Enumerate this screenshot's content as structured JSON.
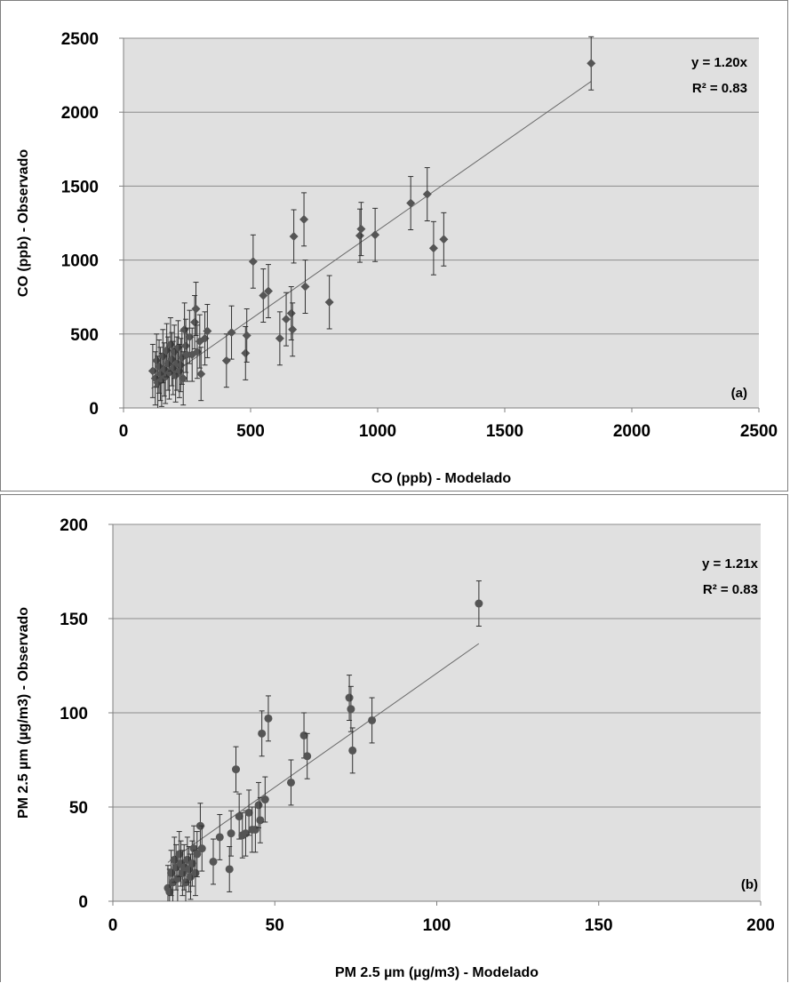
{
  "chart_data": [
    {
      "type": "scatter",
      "panel_label": "(a)",
      "xlabel": "CO (ppb) - Modelado",
      "ylabel": "CO (ppb) - Observado",
      "xlim": [
        0,
        2500
      ],
      "ylim": [
        0,
        2500
      ],
      "xticks": [
        "0",
        "500",
        "1000",
        "1500",
        "2000",
        "2500"
      ],
      "yticks": [
        "0",
        "500",
        "1000",
        "1500",
        "2000",
        "2500"
      ],
      "grid": "horizontal",
      "background": "#e0e0e0",
      "marker_color": "#555555",
      "marker": "diamond",
      "trendline": {
        "equation": "y = 1.20x",
        "r2": "R² = 0.83",
        "slope": 1.2,
        "x_range": [
          110,
          1840
        ]
      },
      "points": [
        {
          "x": 115,
          "y": 250,
          "err": 180
        },
        {
          "x": 125,
          "y": 200,
          "err": 180
        },
        {
          "x": 130,
          "y": 320,
          "err": 180
        },
        {
          "x": 135,
          "y": 170,
          "err": 180
        },
        {
          "x": 140,
          "y": 280,
          "err": 180
        },
        {
          "x": 145,
          "y": 230,
          "err": 180
        },
        {
          "x": 150,
          "y": 190,
          "err": 180
        },
        {
          "x": 155,
          "y": 350,
          "err": 180
        },
        {
          "x": 160,
          "y": 260,
          "err": 180
        },
        {
          "x": 165,
          "y": 210,
          "err": 180
        },
        {
          "x": 170,
          "y": 390,
          "err": 180
        },
        {
          "x": 175,
          "y": 300,
          "err": 180
        },
        {
          "x": 180,
          "y": 240,
          "err": 180
        },
        {
          "x": 185,
          "y": 430,
          "err": 180
        },
        {
          "x": 190,
          "y": 330,
          "err": 180
        },
        {
          "x": 195,
          "y": 270,
          "err": 180
        },
        {
          "x": 200,
          "y": 380,
          "err": 180
        },
        {
          "x": 205,
          "y": 220,
          "err": 180
        },
        {
          "x": 210,
          "y": 300,
          "err": 180
        },
        {
          "x": 215,
          "y": 410,
          "err": 180
        },
        {
          "x": 220,
          "y": 250,
          "err": 180
        },
        {
          "x": 225,
          "y": 290,
          "err": 180
        },
        {
          "x": 230,
          "y": 340,
          "err": 180
        },
        {
          "x": 235,
          "y": 200,
          "err": 180
        },
        {
          "x": 240,
          "y": 530,
          "err": 180
        },
        {
          "x": 245,
          "y": 420,
          "err": 180
        },
        {
          "x": 250,
          "y": 360,
          "err": 180
        },
        {
          "x": 260,
          "y": 480,
          "err": 180
        },
        {
          "x": 270,
          "y": 360,
          "err": 180
        },
        {
          "x": 280,
          "y": 580,
          "err": 180
        },
        {
          "x": 285,
          "y": 670,
          "err": 180
        },
        {
          "x": 290,
          "y": 380,
          "err": 180
        },
        {
          "x": 300,
          "y": 450,
          "err": 180
        },
        {
          "x": 305,
          "y": 230,
          "err": 180
        },
        {
          "x": 320,
          "y": 470,
          "err": 180
        },
        {
          "x": 330,
          "y": 520,
          "err": 180
        },
        {
          "x": 405,
          "y": 320,
          "err": 180
        },
        {
          "x": 425,
          "y": 510,
          "err": 180
        },
        {
          "x": 480,
          "y": 370,
          "err": 180
        },
        {
          "x": 485,
          "y": 490,
          "err": 180
        },
        {
          "x": 510,
          "y": 990,
          "err": 180
        },
        {
          "x": 550,
          "y": 760,
          "err": 180
        },
        {
          "x": 570,
          "y": 790,
          "err": 180
        },
        {
          "x": 615,
          "y": 470,
          "err": 180
        },
        {
          "x": 640,
          "y": 600,
          "err": 180
        },
        {
          "x": 660,
          "y": 640,
          "err": 180
        },
        {
          "x": 665,
          "y": 530,
          "err": 180
        },
        {
          "x": 670,
          "y": 1160,
          "err": 180
        },
        {
          "x": 710,
          "y": 1275,
          "err": 180
        },
        {
          "x": 715,
          "y": 820,
          "err": 180
        },
        {
          "x": 810,
          "y": 715,
          "err": 180
        },
        {
          "x": 930,
          "y": 1165,
          "err": 180
        },
        {
          "x": 935,
          "y": 1210,
          "err": 180
        },
        {
          "x": 990,
          "y": 1170,
          "err": 180
        },
        {
          "x": 1130,
          "y": 1385,
          "err": 180
        },
        {
          "x": 1195,
          "y": 1445,
          "err": 180
        },
        {
          "x": 1220,
          "y": 1080,
          "err": 180
        },
        {
          "x": 1260,
          "y": 1140,
          "err": 180
        },
        {
          "x": 1840,
          "y": 2330,
          "err": 180
        }
      ]
    },
    {
      "type": "scatter",
      "panel_label": "(b)",
      "xlabel": "PM 2.5 µm (µg/m3) - Modelado",
      "ylabel": "PM 2.5 µm (µg/m3) - Observado",
      "xlim": [
        0,
        200
      ],
      "ylim": [
        0,
        200
      ],
      "xticks": [
        "0",
        "50",
        "100",
        "150",
        "200"
      ],
      "yticks": [
        "0",
        "50",
        "100",
        "150",
        "200"
      ],
      "grid": "horizontal",
      "background": "#e0e0e0",
      "marker_color": "#555555",
      "marker": "circle",
      "trendline": {
        "equation": "y = 1.21x",
        "r2": "R² = 0.83",
        "slope": 1.21,
        "x_range": [
          17,
          113
        ]
      },
      "points": [
        {
          "x": 17,
          "y": 7,
          "err": 12
        },
        {
          "x": 17.5,
          "y": 5,
          "err": 12
        },
        {
          "x": 18,
          "y": 15,
          "err": 12
        },
        {
          "x": 18.5,
          "y": 10,
          "err": 12
        },
        {
          "x": 19,
          "y": 22,
          "err": 12
        },
        {
          "x": 19.5,
          "y": 18,
          "err": 12
        },
        {
          "x": 20,
          "y": 12,
          "err": 12
        },
        {
          "x": 20.5,
          "y": 25,
          "err": 12
        },
        {
          "x": 21,
          "y": 20,
          "err": 12
        },
        {
          "x": 21.5,
          "y": 15,
          "err": 12
        },
        {
          "x": 22,
          "y": 18,
          "err": 12
        },
        {
          "x": 22.5,
          "y": 10,
          "err": 12
        },
        {
          "x": 23,
          "y": 22,
          "err": 12
        },
        {
          "x": 23.5,
          "y": 17,
          "err": 12
        },
        {
          "x": 24,
          "y": 13,
          "err": 12
        },
        {
          "x": 24.5,
          "y": 20,
          "err": 12
        },
        {
          "x": 25,
          "y": 28,
          "err": 12
        },
        {
          "x": 25.5,
          "y": 15,
          "err": 12
        },
        {
          "x": 26,
          "y": 25,
          "err": 12
        },
        {
          "x": 27,
          "y": 40,
          "err": 12
        },
        {
          "x": 27.5,
          "y": 28,
          "err": 12
        },
        {
          "x": 31,
          "y": 21,
          "err": 12
        },
        {
          "x": 33,
          "y": 34,
          "err": 12
        },
        {
          "x": 36,
          "y": 17,
          "err": 12
        },
        {
          "x": 36.5,
          "y": 36,
          "err": 12
        },
        {
          "x": 38,
          "y": 70,
          "err": 12
        },
        {
          "x": 39,
          "y": 45,
          "err": 12
        },
        {
          "x": 40,
          "y": 35,
          "err": 12
        },
        {
          "x": 41,
          "y": 36,
          "err": 12
        },
        {
          "x": 42,
          "y": 47,
          "err": 12
        },
        {
          "x": 43,
          "y": 38,
          "err": 12
        },
        {
          "x": 44,
          "y": 38,
          "err": 12
        },
        {
          "x": 45,
          "y": 51,
          "err": 12
        },
        {
          "x": 45.5,
          "y": 43,
          "err": 12
        },
        {
          "x": 46,
          "y": 89,
          "err": 12
        },
        {
          "x": 47,
          "y": 54,
          "err": 12
        },
        {
          "x": 48,
          "y": 97,
          "err": 12
        },
        {
          "x": 55,
          "y": 63,
          "err": 12
        },
        {
          "x": 59,
          "y": 88,
          "err": 12
        },
        {
          "x": 60,
          "y": 77,
          "err": 12
        },
        {
          "x": 73,
          "y": 108,
          "err": 12
        },
        {
          "x": 73.5,
          "y": 102,
          "err": 12
        },
        {
          "x": 74,
          "y": 80,
          "err": 12
        },
        {
          "x": 80,
          "y": 96,
          "err": 12
        },
        {
          "x": 113,
          "y": 158,
          "err": 12
        }
      ]
    }
  ]
}
